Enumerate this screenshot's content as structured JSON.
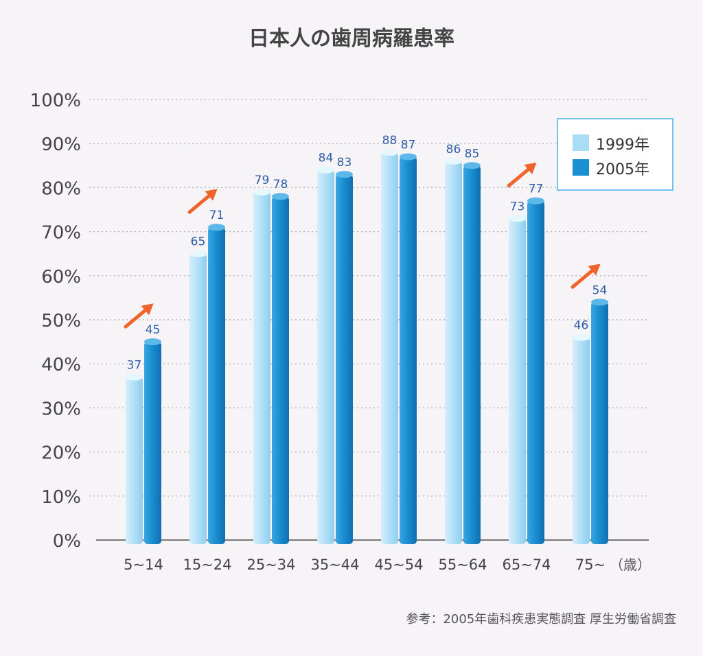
{
  "chart_data": {
    "type": "bar",
    "title": "日本人の歯周病羅患率",
    "categories": [
      "5~14",
      "15~24",
      "25~34",
      "35~44",
      "45~54",
      "55~64",
      "65~74",
      "75~"
    ],
    "x_unit": "（歳）",
    "series": [
      {
        "name": "1999年",
        "values": [
          37,
          65,
          79,
          84,
          88,
          86,
          73,
          46
        ],
        "color": "#a9dcf5"
      },
      {
        "name": "2005年",
        "values": [
          45,
          71,
          78,
          83,
          87,
          85,
          77,
          54
        ],
        "color": "#1a8fd2"
      }
    ],
    "ylim": [
      0,
      100
    ],
    "y_ticks": [
      "0%",
      "10%",
      "20%",
      "30%",
      "40%",
      "50%",
      "60%",
      "70%",
      "80%",
      "90%",
      "100%"
    ],
    "grid": true,
    "legend_position": "top-right",
    "increase_arrows": [
      "5~14",
      "15~24",
      "65~74",
      "75~"
    ],
    "arrow_color": "#f0632a",
    "source": "参考：2005年歯科疾患実態調査 厚生労働省調査"
  }
}
